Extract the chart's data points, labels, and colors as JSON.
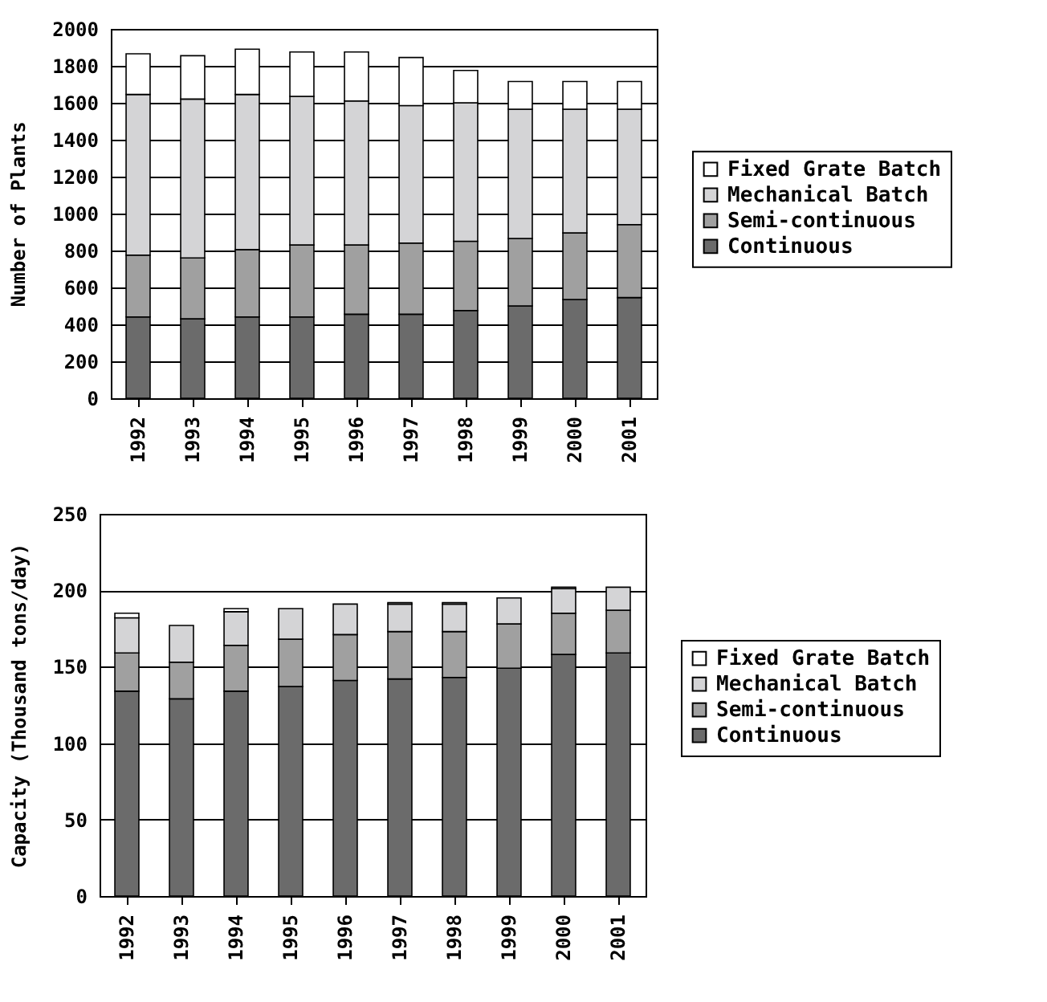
{
  "chart_data": [
    {
      "type": "bar",
      "stacked": true,
      "ylabel": "Number of Plants",
      "categories": [
        "1992",
        "1993",
        "1994",
        "1995",
        "1996",
        "1997",
        "1998",
        "1999",
        "2000",
        "2001"
      ],
      "ylim": [
        0,
        2000
      ],
      "yticks": [
        0,
        200,
        400,
        600,
        800,
        1000,
        1200,
        1400,
        1600,
        1800,
        2000
      ],
      "grid": "y",
      "legend": "right",
      "series": [
        {
          "name": "Continuous",
          "color": "#6b6b6b",
          "values": [
            440,
            430,
            440,
            440,
            455,
            455,
            475,
            500,
            535,
            545
          ]
        },
        {
          "name": "Semi-continuous",
          "color": "#a0a0a0",
          "values": [
            335,
            330,
            365,
            390,
            375,
            385,
            375,
            365,
            360,
            395
          ]
        },
        {
          "name": "Mechanical Batch",
          "color": "#d4d4d6",
          "values": [
            870,
            860,
            840,
            805,
            780,
            745,
            750,
            700,
            670,
            625
          ]
        },
        {
          "name": "Fixed Grate Batch",
          "color": "#ffffff",
          "values": [
            220,
            235,
            245,
            240,
            265,
            260,
            175,
            150,
            150,
            150
          ]
        }
      ]
    },
    {
      "type": "bar",
      "stacked": true,
      "ylabel": "Capacity (Thousand tons/day)",
      "categories": [
        "1992",
        "1993",
        "1994",
        "1995",
        "1996",
        "1997",
        "1998",
        "1999",
        "2000",
        "2001"
      ],
      "ylim": [
        0,
        250
      ],
      "yticks": [
        0,
        50,
        100,
        150,
        200,
        250
      ],
      "grid": "y",
      "legend": "right",
      "series": [
        {
          "name": "Continuous",
          "color": "#6b6b6b",
          "values": [
            134,
            129,
            134,
            137,
            141,
            142,
            143,
            149,
            158,
            159
          ]
        },
        {
          "name": "Semi-continuous",
          "color": "#a0a0a0",
          "values": [
            25,
            24,
            30,
            31,
            30,
            31,
            30,
            29,
            27,
            28
          ]
        },
        {
          "name": "Mechanical Batch",
          "color": "#d4d4d6",
          "values": [
            23,
            24,
            22,
            20,
            20,
            18,
            18,
            17,
            16,
            15
          ]
        },
        {
          "name": "Fixed Grate Batch",
          "color": "#ffffff",
          "values": [
            3,
            null,
            2,
            0,
            0,
            1,
            1,
            0,
            1,
            0
          ]
        }
      ]
    }
  ]
}
